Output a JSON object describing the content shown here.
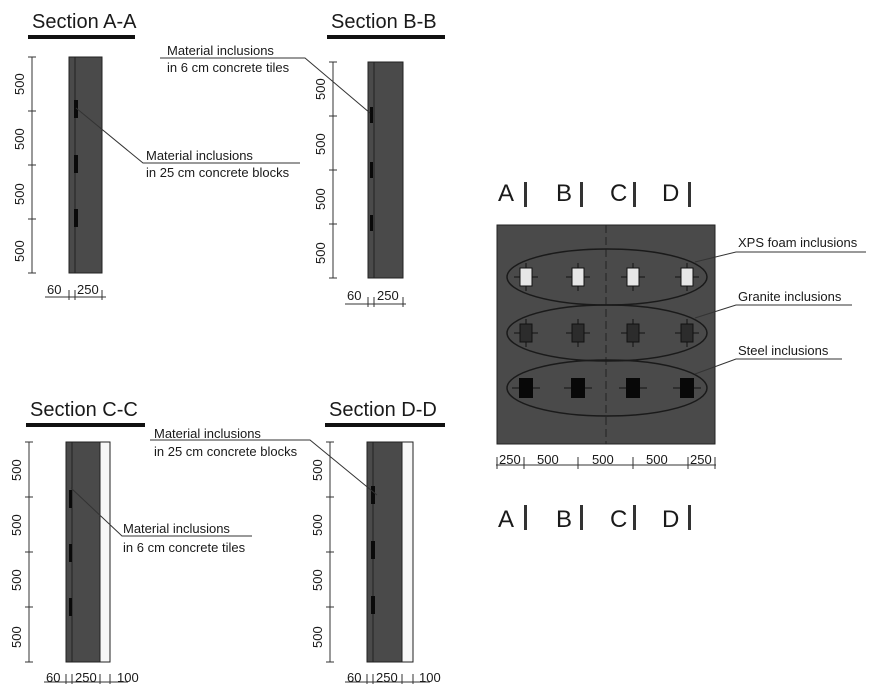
{
  "sections": {
    "a": {
      "title": "Section A-A",
      "dims_vertical": [
        "500",
        "500",
        "500",
        "500"
      ],
      "dims_bottom": [
        "60",
        "250"
      ],
      "callout_line1": "Material inclusions",
      "callout_line2": "in 25 cm concrete blocks"
    },
    "b": {
      "title": "Section B-B",
      "dims_vertical": [
        "500",
        "500",
        "500",
        "500"
      ],
      "dims_bottom": [
        "60",
        "250"
      ],
      "callout_line1": "Material inclusions",
      "callout_line2": "in 6 cm concrete tiles"
    },
    "c": {
      "title": "Section C-C",
      "dims_vertical": [
        "500",
        "500",
        "500",
        "500"
      ],
      "dims_bottom": [
        "60",
        "250",
        "100"
      ],
      "callout_line1": "Material inclusions",
      "callout_line2": "in 6 cm concrete tiles"
    },
    "d": {
      "title": "Section D-D",
      "dims_vertical": [
        "500",
        "500",
        "500",
        "500"
      ],
      "dims_bottom": [
        "60",
        "250",
        "100"
      ],
      "callout_line1": "Material inclusions",
      "callout_line2": "in 25 cm concrete blocks"
    }
  },
  "plan": {
    "section_markers": [
      "A",
      "B",
      "C",
      "D"
    ],
    "dims_bottom": [
      "250",
      "500",
      "500",
      "500",
      "250"
    ],
    "rows": [
      {
        "label": "XPS foam inclusions",
        "material": "xps"
      },
      {
        "label": "Granite inclusions",
        "material": "granite"
      },
      {
        "label": "Steel inclusions",
        "material": "steel"
      }
    ]
  },
  "colors": {
    "panel": "#4a4a4a",
    "xps": "#e6e6e6",
    "granite": "#2c2c2c",
    "steel": "#080808",
    "insulation": "#f7f7f7",
    "line": "#333333"
  }
}
